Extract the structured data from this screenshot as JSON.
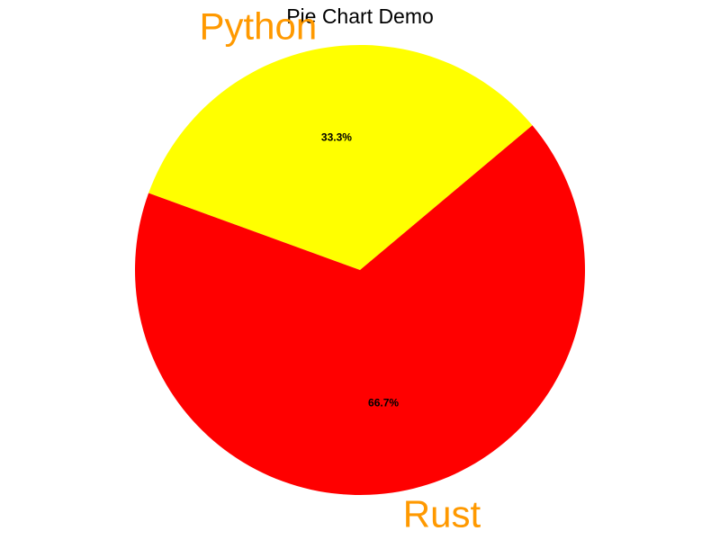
{
  "chart_data": {
    "type": "pie",
    "title": "Pie Chart Demo",
    "label_color": "#ff9900",
    "start_angle_deg": 40,
    "direction": "counterclockwise",
    "slices": [
      {
        "label": "Python",
        "value": 1,
        "percent_label": "33.3%",
        "color": "#ffff00"
      },
      {
        "label": "Rust",
        "value": 2,
        "percent_label": "66.7%",
        "color": "#ff0000"
      }
    ],
    "legend": "none",
    "grid": false
  }
}
